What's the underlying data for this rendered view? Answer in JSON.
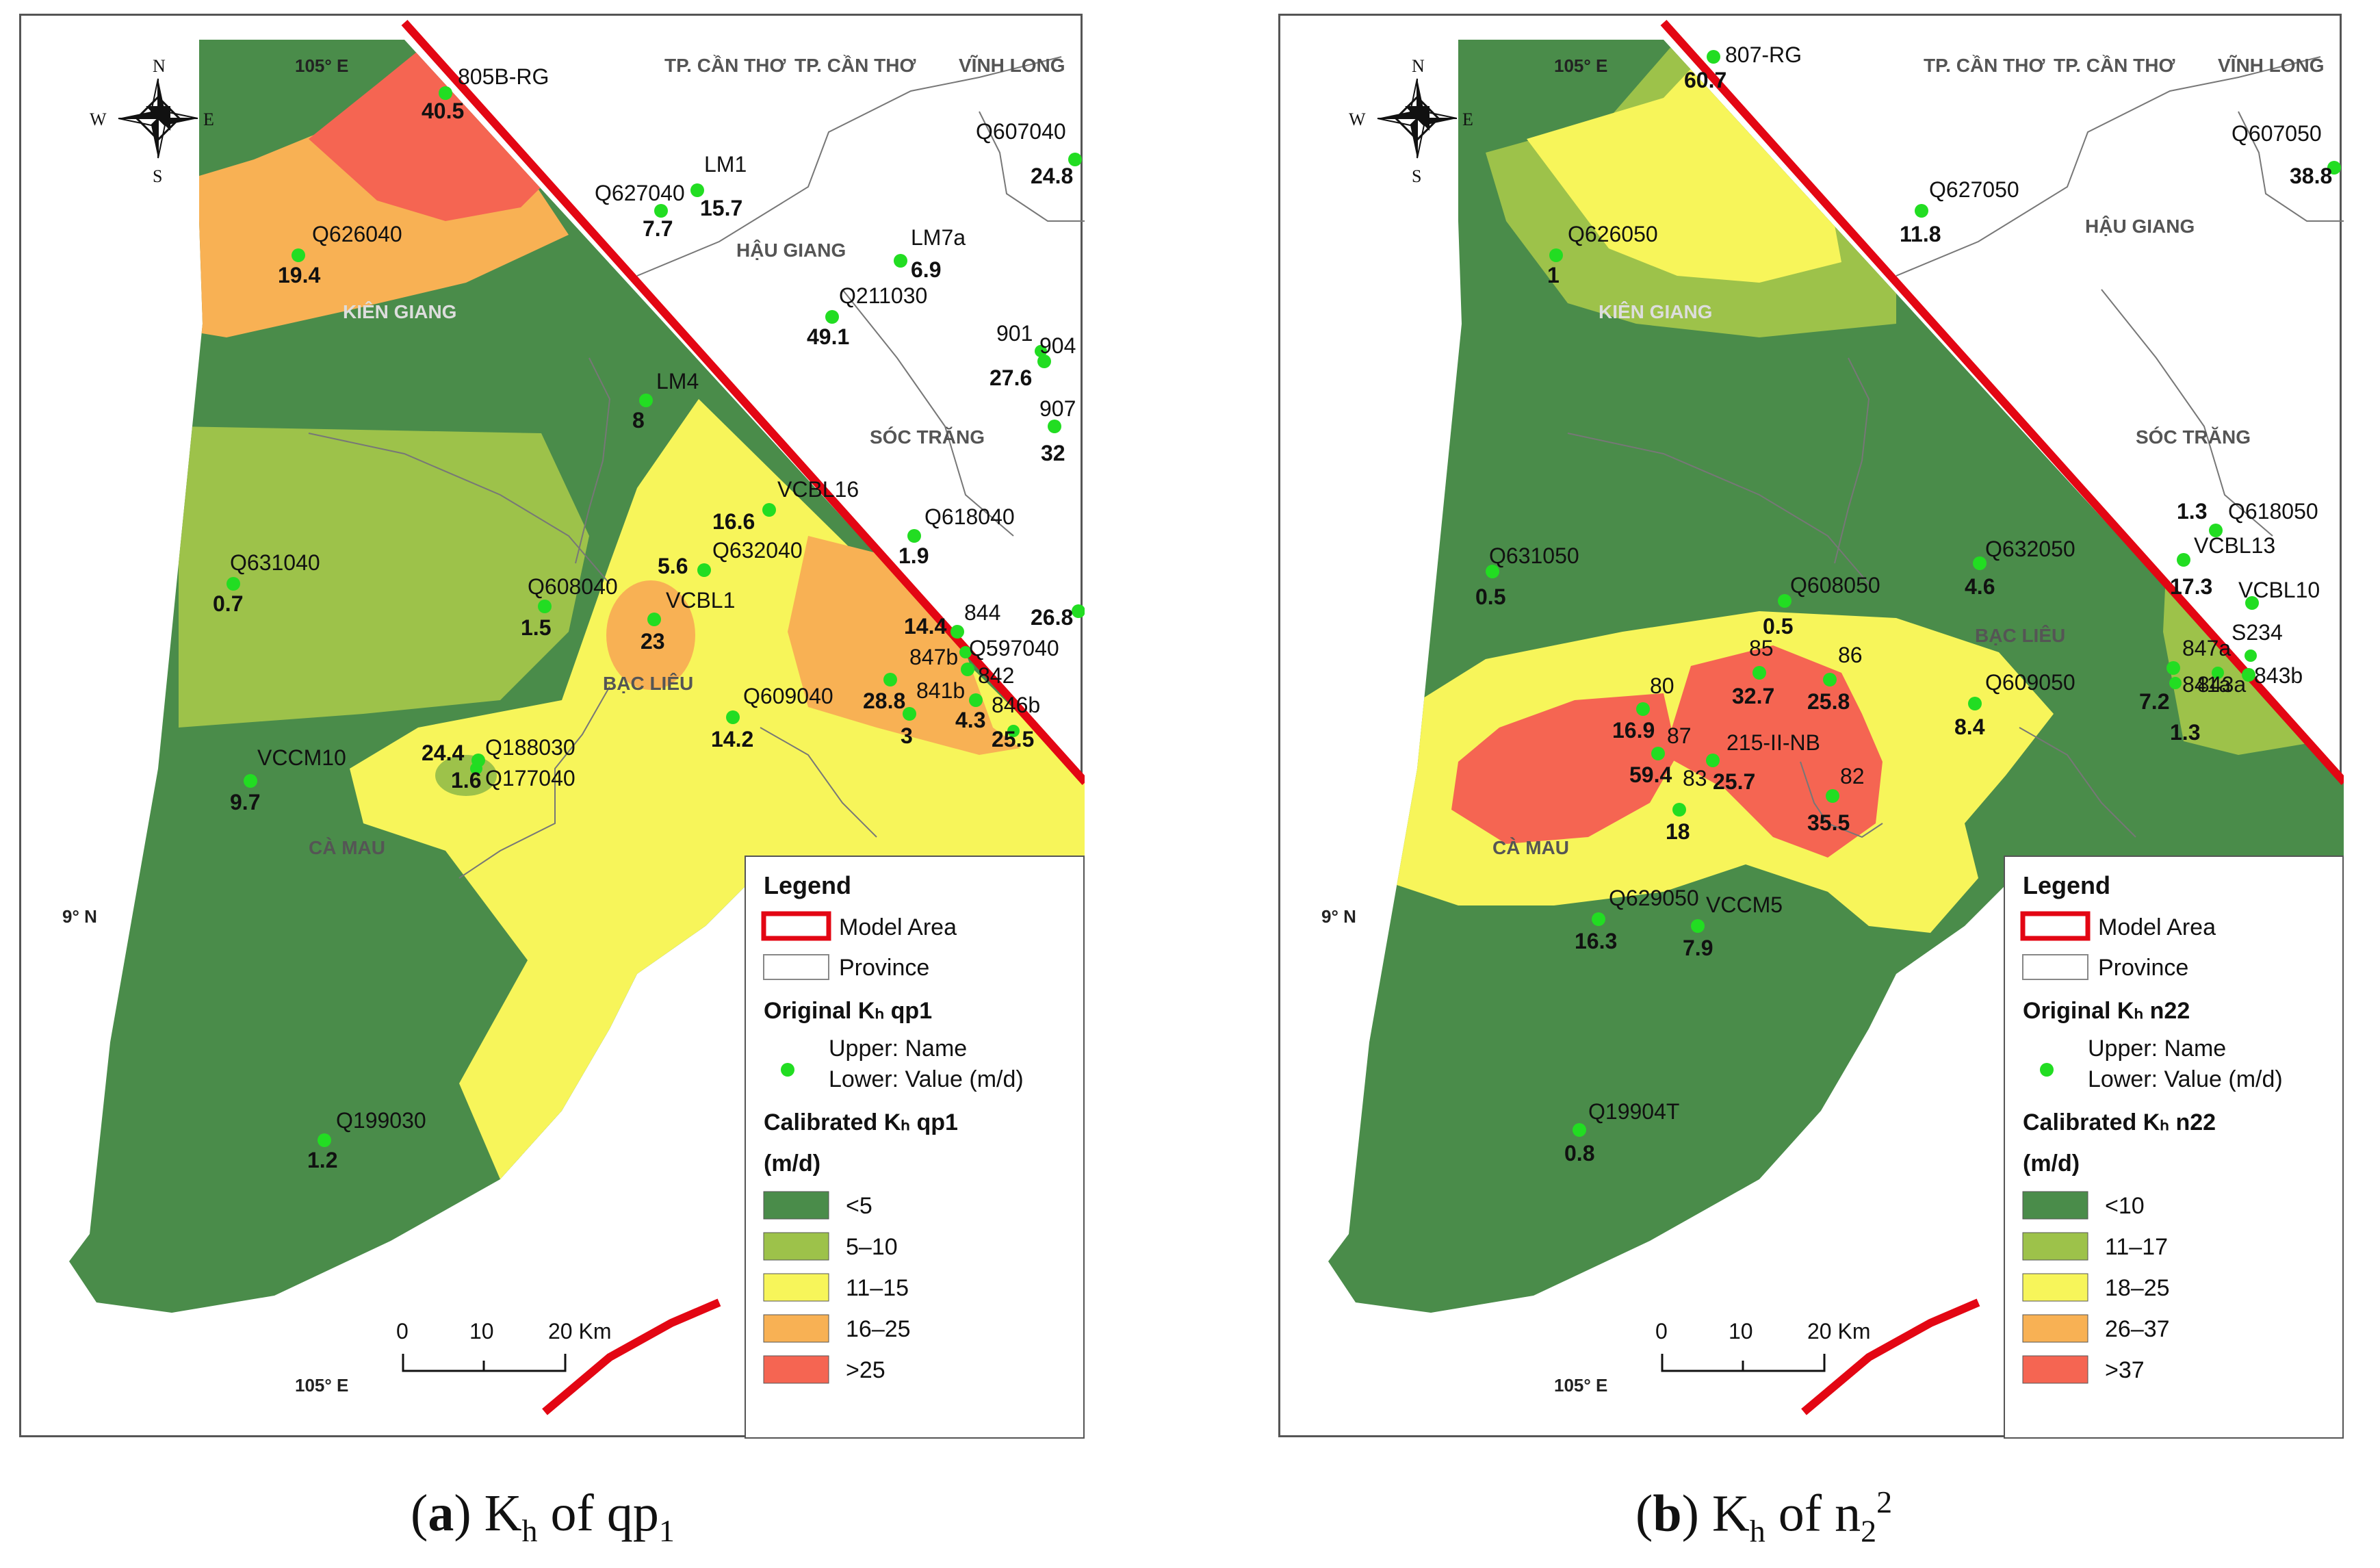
{
  "common": {
    "lon_label": "105° E",
    "lat_label": "9° N",
    "compass": {
      "n": "N",
      "s": "S",
      "e": "E",
      "w": "W"
    },
    "provinces": {
      "can_tho_1": "TP. CẦN THƠ",
      "can_tho_2": "TP. CẦN THƠ",
      "vinh_long": "VĨNH LONG",
      "hau_giang": "HẬU GIANG",
      "kien_giang": "KIÊN GIANG",
      "soc_trang": "SÓC TRĂNG",
      "bac_lieu": "BẠC LIÊU",
      "ca_mau": "CÀ MAU"
    },
    "scale": {
      "t0": "0",
      "t1": "10",
      "t2": "20 Km"
    },
    "colors": {
      "class1": "#4a8c4a",
      "class2": "#9dc24a",
      "class3": "#f7f55a",
      "class4": "#f8b154",
      "class5": "#f56552",
      "model_area": "#e30613",
      "well": "#22dd22"
    }
  },
  "panel_a": {
    "caption": {
      "label": "a",
      "main": "K",
      "sub1": "h",
      "mid": " of qp",
      "sub2": "1"
    },
    "legend": {
      "title": "Legend",
      "model_area": "Model Area",
      "province": "Province",
      "original_title": "Original Kₕ qp1",
      "upper": "Upper: Name",
      "lower": "Lower: Value (m/d)",
      "calibrated_title": "Calibrated Kₕ qp1",
      "unit": "(m/d)",
      "classes": [
        "<5",
        "5–10",
        "11–15",
        "16–25",
        ">25"
      ]
    },
    "wells": [
      {
        "name": "805B-RG",
        "value": "40.5"
      },
      {
        "name": "Q627040",
        "value": "7.7"
      },
      {
        "name": "LM1",
        "value": "15.7"
      },
      {
        "name": "Q607040",
        "value": "24.8"
      },
      {
        "name": "Q626040",
        "value": "19.4"
      },
      {
        "name": "LM7a",
        "value": "6.9"
      },
      {
        "name": "Q211030",
        "value": "49.1"
      },
      {
        "name": "901",
        "value": "27.6"
      },
      {
        "name": "904",
        "value": ""
      },
      {
        "name": "907",
        "value": "32"
      },
      {
        "name": "LM4",
        "value": "8"
      },
      {
        "name": "VCBL16",
        "value": "16.6"
      },
      {
        "name": "Q618040",
        "value": "1.9"
      },
      {
        "name": "Q632040",
        "value": "5.6"
      },
      {
        "name": "Q631040",
        "value": "0.7"
      },
      {
        "name": "Q608040",
        "value": "1.5"
      },
      {
        "name": "VCBL1",
        "value": "23"
      },
      {
        "name": "844",
        "value": "14.4"
      },
      {
        "name": "Q597040",
        "value": ""
      },
      {
        "name": "",
        "value": "26.8"
      },
      {
        "name": "847b",
        "value": "28.8"
      },
      {
        "name": "842",
        "value": ""
      },
      {
        "name": "841b",
        "value": "3"
      },
      {
        "name": "846b",
        "value": "4.3"
      },
      {
        "name": "",
        "value": "25.5"
      },
      {
        "name": "Q609040",
        "value": "14.2"
      },
      {
        "name": "Q188030",
        "value": "24.4"
      },
      {
        "name": "Q177040",
        "value": "1.6"
      },
      {
        "name": "VCCM10",
        "value": "9.7"
      },
      {
        "name": "Q199030",
        "value": "1.2"
      }
    ]
  },
  "panel_b": {
    "caption": {
      "label": "b",
      "main": "K",
      "sub1": "h",
      "mid": " of n",
      "sub2": "2",
      "sup": "2"
    },
    "legend": {
      "title": "Legend",
      "model_area": "Model Area",
      "province": "Province",
      "original_title": "Original Kₕ n22",
      "upper": "Upper: Name",
      "lower": "Lower: Value (m/d)",
      "calibrated_title": "Calibrated Kₕ n22",
      "unit": "(m/d)",
      "classes": [
        "<10",
        "11–17",
        "18–25",
        "26–37",
        ">37"
      ]
    },
    "wells": [
      {
        "name": "807-RG",
        "value": "60.7"
      },
      {
        "name": "Q607050",
        "value": "38.8"
      },
      {
        "name": "Q627050",
        "value": "11.8"
      },
      {
        "name": "Q626050",
        "value": "1"
      },
      {
        "name": "Q618050",
        "value": "1.3"
      },
      {
        "name": "VCBL13",
        "value": "17.3"
      },
      {
        "name": "Q631050",
        "value": "0.5"
      },
      {
        "name": "Q632050",
        "value": "4.6"
      },
      {
        "name": "Q608050",
        "value": "0.5"
      },
      {
        "name": "VCBL10",
        "value": ""
      },
      {
        "name": "S234",
        "value": ""
      },
      {
        "name": "847a",
        "value": "7.2"
      },
      {
        "name": "841a",
        "value": ""
      },
      {
        "name": "843a",
        "value": ""
      },
      {
        "name": "843b",
        "value": "1.3"
      },
      {
        "name": "85",
        "value": "32.7"
      },
      {
        "name": "86",
        "value": "25.8"
      },
      {
        "name": "80",
        "value": "16.9"
      },
      {
        "name": "87",
        "value": "59.4"
      },
      {
        "name": "215-II-NB",
        "value": "25.7"
      },
      {
        "name": "83",
        "value": "18"
      },
      {
        "name": "82",
        "value": "35.5"
      },
      {
        "name": "Q609050",
        "value": "8.4"
      },
      {
        "name": "Q629050",
        "value": "16.3"
      },
      {
        "name": "VCCM5",
        "value": "7.9"
      },
      {
        "name": "Q19904T",
        "value": "0.8"
      }
    ]
  }
}
